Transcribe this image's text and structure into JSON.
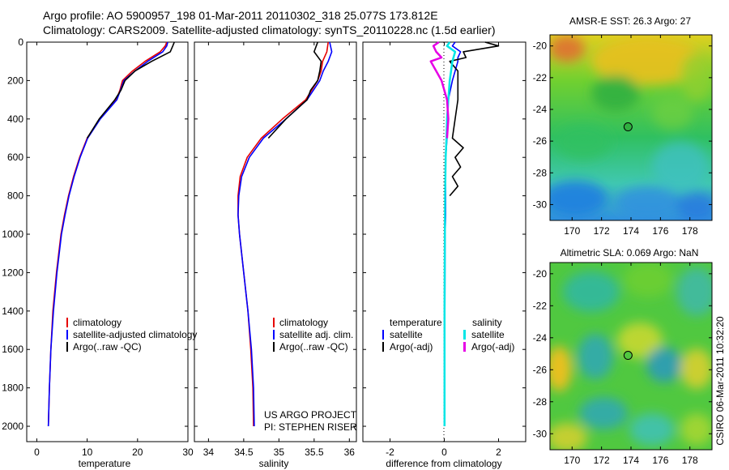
{
  "header": {
    "line1": "Argo profile: AO 5900957_198 01-Mar-2011 20110302_318 25.077S 173.812E",
    "line2": "Climatology: CARS2009. Satellite-adjusted climatology: synTS_20110228.nc (1.5d earlier)"
  },
  "footer_stamp": "CSIRO 06-Mar-2011 10:32:20",
  "colors": {
    "red": "#e60000",
    "blue": "#0000ff",
    "black": "#000000",
    "cyan": "#00e6e6",
    "magenta": "#e600e6"
  },
  "chart_data": [
    {
      "id": "temperature",
      "type": "line",
      "xlabel": "temperature",
      "xlim": [
        -2,
        30
      ],
      "xticks": [
        0,
        10,
        20,
        30
      ],
      "ylim": [
        0,
        2080
      ],
      "yticks": [
        0,
        200,
        400,
        600,
        800,
        1000,
        1200,
        1400,
        1600,
        1800,
        2000
      ],
      "y_inverted": true,
      "legend": {
        "position": "lower-center",
        "entries": [
          "climatology",
          "satellite-adjusted climatology",
          "Argo(..raw -QC)"
        ]
      },
      "series": [
        {
          "name": "climatology",
          "color": "red",
          "depth": [
            0,
            20,
            50,
            100,
            150,
            200,
            250,
            300,
            400,
            500,
            600,
            700,
            800,
            900,
            1000,
            1200,
            1400,
            1600,
            1800,
            2000
          ],
          "values": [
            25.8,
            25.5,
            24.5,
            21.5,
            19.0,
            17.0,
            16.5,
            15.8,
            12.5,
            10.0,
            8.5,
            7.3,
            6.3,
            5.5,
            4.8,
            3.9,
            3.2,
            2.8,
            2.5,
            2.3
          ]
        },
        {
          "name": "satellite-adjusted climatology",
          "color": "blue",
          "depth": [
            0,
            20,
            50,
            100,
            150,
            200,
            250,
            300,
            400,
            500,
            600,
            700,
            800,
            900,
            1000,
            1200,
            1400,
            1600,
            1800,
            2000
          ],
          "values": [
            26.0,
            25.8,
            25.0,
            22.0,
            19.5,
            17.3,
            16.6,
            15.9,
            12.6,
            10.1,
            8.6,
            7.4,
            6.4,
            5.6,
            4.9,
            4.0,
            3.3,
            2.8,
            2.5,
            2.3
          ]
        },
        {
          "name": "Argo(..raw -QC)",
          "color": "black",
          "depth": [
            0,
            20,
            50,
            100,
            150,
            200,
            250,
            300,
            400,
            500
          ],
          "values": [
            27.3,
            27.0,
            26.5,
            22.8,
            19.5,
            17.5,
            16.7,
            15.5,
            12.4,
            10.0
          ]
        }
      ]
    },
    {
      "id": "salinity",
      "type": "line",
      "xlabel": "salinity",
      "xlim": [
        33.8,
        36.1
      ],
      "xticks": [
        34,
        34.5,
        35,
        35.5,
        36
      ],
      "ylim": [
        0,
        2080
      ],
      "y_inverted": true,
      "legend": {
        "position": "lower-center",
        "entries": [
          "climatology",
          "satellite adj. clim.",
          "Argo(..raw -QC)"
        ]
      },
      "annotation": [
        "US ARGO PROJECT",
        "PI: STEPHEN RISER"
      ],
      "series": [
        {
          "name": "climatology",
          "color": "red",
          "depth": [
            0,
            50,
            100,
            150,
            200,
            300,
            400,
            500,
            600,
            700,
            800,
            900,
            1000,
            1200,
            1400,
            1600,
            1800,
            2000
          ],
          "values": [
            35.7,
            35.68,
            35.62,
            35.6,
            35.55,
            35.38,
            35.05,
            34.75,
            34.55,
            34.45,
            34.42,
            34.42,
            34.44,
            34.5,
            34.56,
            34.6,
            34.63,
            34.64
          ]
        },
        {
          "name": "satellite adj. clim.",
          "color": "blue",
          "depth": [
            0,
            50,
            100,
            150,
            200,
            300,
            400,
            500,
            600,
            700,
            800,
            900,
            1000,
            1200,
            1400,
            1600,
            1800,
            2000
          ],
          "values": [
            35.72,
            35.75,
            35.7,
            35.63,
            35.58,
            35.4,
            35.1,
            34.78,
            34.58,
            34.47,
            34.43,
            34.42,
            34.44,
            34.5,
            34.56,
            34.61,
            34.64,
            34.65
          ]
        },
        {
          "name": "Argo(..raw -QC)",
          "color": "black",
          "depth": [
            0,
            50,
            100,
            150,
            200,
            250,
            300,
            400,
            500
          ],
          "values": [
            35.55,
            35.5,
            35.6,
            35.58,
            35.55,
            35.45,
            35.4,
            35.1,
            34.85
          ]
        }
      ]
    },
    {
      "id": "difference",
      "type": "line",
      "xlabel": "difference from climatology",
      "xlim": [
        -3,
        3
      ],
      "xticks": [
        -2,
        0,
        2
      ],
      "ylim": [
        0,
        2080
      ],
      "y_inverted": true,
      "legend": {
        "position": "lower-center",
        "temperature_header": "temperature",
        "salinity_header": "salinity",
        "temperature_entries": [
          "satellite",
          "Argo(-adj)"
        ],
        "salinity_entries": [
          "satellite",
          "Argo(-adj)"
        ]
      },
      "series": [
        {
          "name": "temperature satellite",
          "color": "blue",
          "depth": [
            0,
            20,
            50,
            80,
            100,
            150,
            200,
            300,
            400,
            500,
            600,
            700,
            800,
            900,
            1000,
            1400,
            2000
          ],
          "values": [
            0.4,
            0.3,
            0.6,
            0.5,
            0.5,
            0.4,
            0.3,
            0.15,
            0.1,
            0.1,
            0.05,
            0.05,
            0.05,
            0.05,
            0.03,
            0.02,
            0.01
          ]
        },
        {
          "name": "temperature Argo(-adj)",
          "color": "black",
          "depth": [
            0,
            20,
            50,
            80,
            100,
            150,
            200,
            300,
            400,
            500,
            550,
            600,
            650,
            700,
            750,
            800
          ],
          "values": [
            1.5,
            2.0,
            0.7,
            0.8,
            0.2,
            0.5,
            0.5,
            0.5,
            0.4,
            0.3,
            0.7,
            0.4,
            0.6,
            0.3,
            0.5,
            0.2
          ]
        },
        {
          "name": "salinity satellite",
          "color": "cyan",
          "depth": [
            0,
            20,
            50,
            100,
            150,
            200,
            300,
            400,
            500,
            600,
            800,
            1000,
            1400,
            2000
          ],
          "values": [
            0.2,
            0.1,
            0.4,
            0.3,
            0.25,
            0.2,
            0.15,
            0.1,
            0.08,
            0.05,
            0.03,
            0.02,
            0.01,
            0.01
          ]
        },
        {
          "name": "salinity Argo(-adj)",
          "color": "magenta",
          "depth": [
            0,
            20,
            50,
            80,
            100,
            150,
            200,
            300,
            400,
            500
          ],
          "values": [
            -0.2,
            -0.4,
            -0.3,
            -0.1,
            -0.5,
            -0.3,
            -0.1,
            0.1,
            0.15,
            0.1
          ]
        }
      ]
    },
    {
      "id": "sst_map",
      "type": "heatmap",
      "title": "AMSR-E SST: 26.3 Argo: 27",
      "xlim": [
        168.5,
        179.5
      ],
      "xticks": [
        170,
        172,
        174,
        176,
        178
      ],
      "ylim": [
        -31,
        -19.3
      ],
      "yticks": [
        -20,
        -22,
        -24,
        -26,
        -28,
        -30
      ],
      "marker": {
        "lon": 173.8,
        "lat": -25.1
      }
    },
    {
      "id": "sla_map",
      "type": "heatmap",
      "title": "Altimetric SLA: 0.069 Argo: NaN",
      "xlim": [
        168.5,
        179.5
      ],
      "xticks": [
        170,
        172,
        174,
        176,
        178
      ],
      "ylim": [
        -31,
        -19.3
      ],
      "yticks": [
        -20,
        -22,
        -24,
        -26,
        -28,
        -30
      ],
      "marker": {
        "lon": 173.8,
        "lat": -25.1
      }
    }
  ]
}
